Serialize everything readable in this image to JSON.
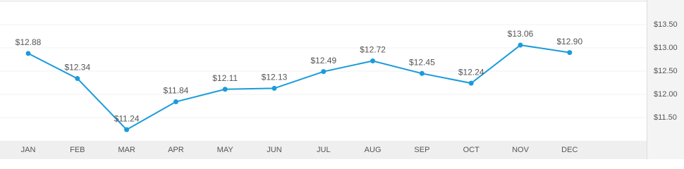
{
  "chart_data": {
    "type": "line",
    "categories": [
      "JAN",
      "FEB",
      "MAR",
      "APR",
      "MAY",
      "JUN",
      "JUL",
      "AUG",
      "SEP",
      "OCT",
      "NOV",
      "DEC"
    ],
    "values": [
      12.88,
      12.34,
      11.24,
      11.84,
      12.11,
      12.13,
      12.49,
      12.72,
      12.45,
      12.24,
      13.06,
      12.9
    ],
    "value_labels": [
      "$12.88",
      "$12.34",
      "$11.24",
      "$11.84",
      "$12.11",
      "$12.13",
      "$12.49",
      "$12.72",
      "$12.45",
      "$12.24",
      "$13.06",
      "$12.90"
    ],
    "color": "#1a9bdb",
    "ylim": [
      11,
      14
    ],
    "yticks": [
      {
        "value": 11.5,
        "label": "$11.50"
      },
      {
        "value": 12,
        "label": "$12.00"
      },
      {
        "value": 12.5,
        "label": "$12.50"
      },
      {
        "value": 13,
        "label": "$13.00"
      },
      {
        "value": 13.5,
        "label": "$13.50"
      }
    ],
    "grid": true
  }
}
